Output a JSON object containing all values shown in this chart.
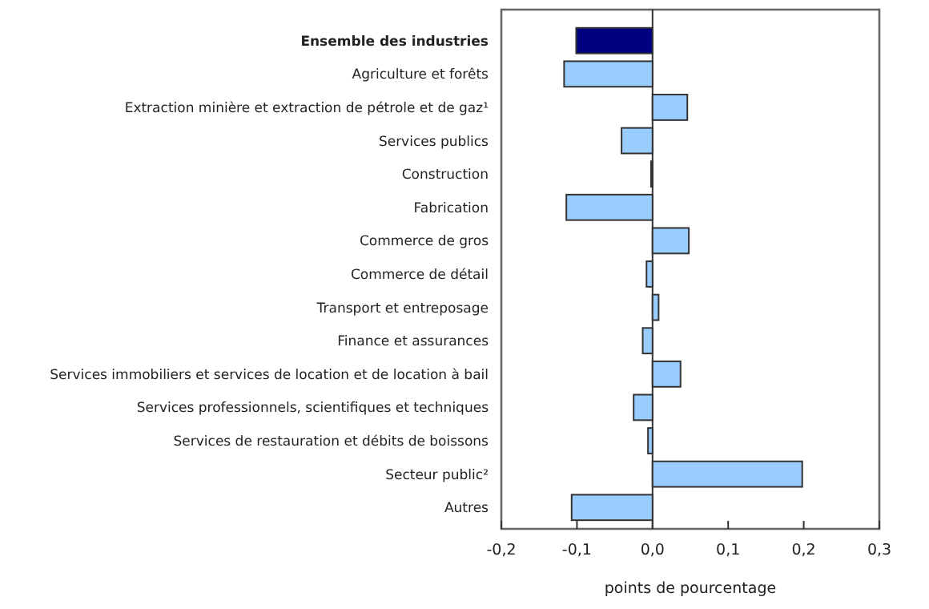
{
  "chart_data": {
    "type": "bar",
    "orientation": "horizontal",
    "xlabel": "points de pourcentage",
    "categories": [
      "Ensemble des industries",
      "Agriculture et forêts",
      "Extraction minière et extraction de pétrole et de gaz¹",
      "Services publics",
      "Construction",
      "Fabrication",
      "Commerce de gros",
      "Commerce de détail",
      "Transport et entreposage",
      "Finance et assurances",
      "Services immobiliers et services de location et de location à bail",
      "Services professionnels, scientifiques et techniques",
      "Services de restauration et débits de boissons",
      "Secteur public²",
      "Autres"
    ],
    "values": [
      -0.101,
      -0.117,
      0.046,
      -0.041,
      -0.002,
      -0.114,
      0.048,
      -0.008,
      0.008,
      -0.013,
      0.037,
      -0.025,
      -0.006,
      0.198,
      -0.107
    ],
    "colors": [
      "#000080",
      "#99ccff",
      "#99ccff",
      "#99ccff",
      "#99ccff",
      "#99ccff",
      "#99ccff",
      "#99ccff",
      "#99ccff",
      "#99ccff",
      "#99ccff",
      "#99ccff",
      "#99ccff",
      "#99ccff",
      "#99ccff"
    ],
    "xlim": [
      -0.2,
      0.3
    ],
    "xticks": [
      {
        "value": -0.2,
        "label": "-0,2"
      },
      {
        "value": -0.1,
        "label": "-0,1"
      },
      {
        "value": 0,
        "label": "0,0"
      },
      {
        "value": 0.1,
        "label": "0,1"
      },
      {
        "value": 0.2,
        "label": "0,2"
      },
      {
        "value": 0.3,
        "label": "0,3"
      }
    ],
    "tick_labels": true
  }
}
